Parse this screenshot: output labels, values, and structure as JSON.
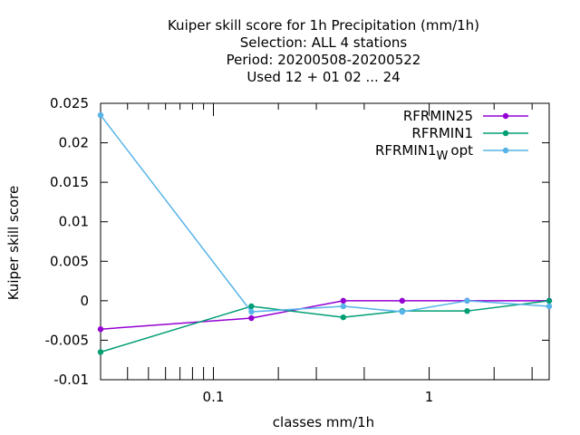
{
  "chart_data": {
    "type": "line",
    "title_lines": [
      "Kuiper skill score  for 1h Precipitation (mm/1h)",
      "Selection: ALL      4 stations",
      "Period: 20200508-20200522",
      "Used  12 + 01 02 ... 24"
    ],
    "xlabel": "classes mm/1h",
    "ylabel": "Kuiper skill score",
    "xscale": "log",
    "xlim": [
      0.03,
      3.6
    ],
    "ylim": [
      -0.01,
      0.025
    ],
    "yticks": [
      {
        "v": 0.025,
        "label": "0.025"
      },
      {
        "v": 0.02,
        "label": "0.02"
      },
      {
        "v": 0.015,
        "label": "0.015"
      },
      {
        "v": 0.01,
        "label": "0.01"
      },
      {
        "v": 0.005,
        "label": "0.005"
      },
      {
        "v": 0,
        "label": "0"
      },
      {
        "v": -0.005,
        "label": "-0.005"
      },
      {
        "v": -0.01,
        "label": "-0.01"
      }
    ],
    "xticks_major": [
      {
        "v": 0.1,
        "label": "0.1"
      },
      {
        "v": 1,
        "label": "1"
      }
    ],
    "xticks_minor": [
      0.04,
      0.05,
      0.06,
      0.07,
      0.08,
      0.09,
      0.2,
      0.3,
      0.5,
      2,
      3
    ],
    "x": [
      0.03,
      0.15,
      0.4,
      0.75,
      1.5,
      3.6
    ],
    "legend_position": "top-right",
    "series": [
      {
        "name": "RFRMIN25",
        "color": "#9400d3",
        "values": [
          -0.0036,
          -0.0022,
          0.0,
          0.0,
          0.0,
          0.0
        ]
      },
      {
        "name": "RFRMIN1",
        "color": "#009e73",
        "values": [
          -0.0065,
          -0.0007,
          -0.0021,
          -0.0013,
          -0.0013,
          0.0
        ]
      },
      {
        "name": "RFRMIN1",
        "name_sub": "W",
        "name_suffix": "opt",
        "color": "#56b4e9",
        "values": [
          0.0235,
          -0.0014,
          -0.0007,
          -0.0014,
          0.0,
          -0.0007
        ]
      }
    ]
  }
}
